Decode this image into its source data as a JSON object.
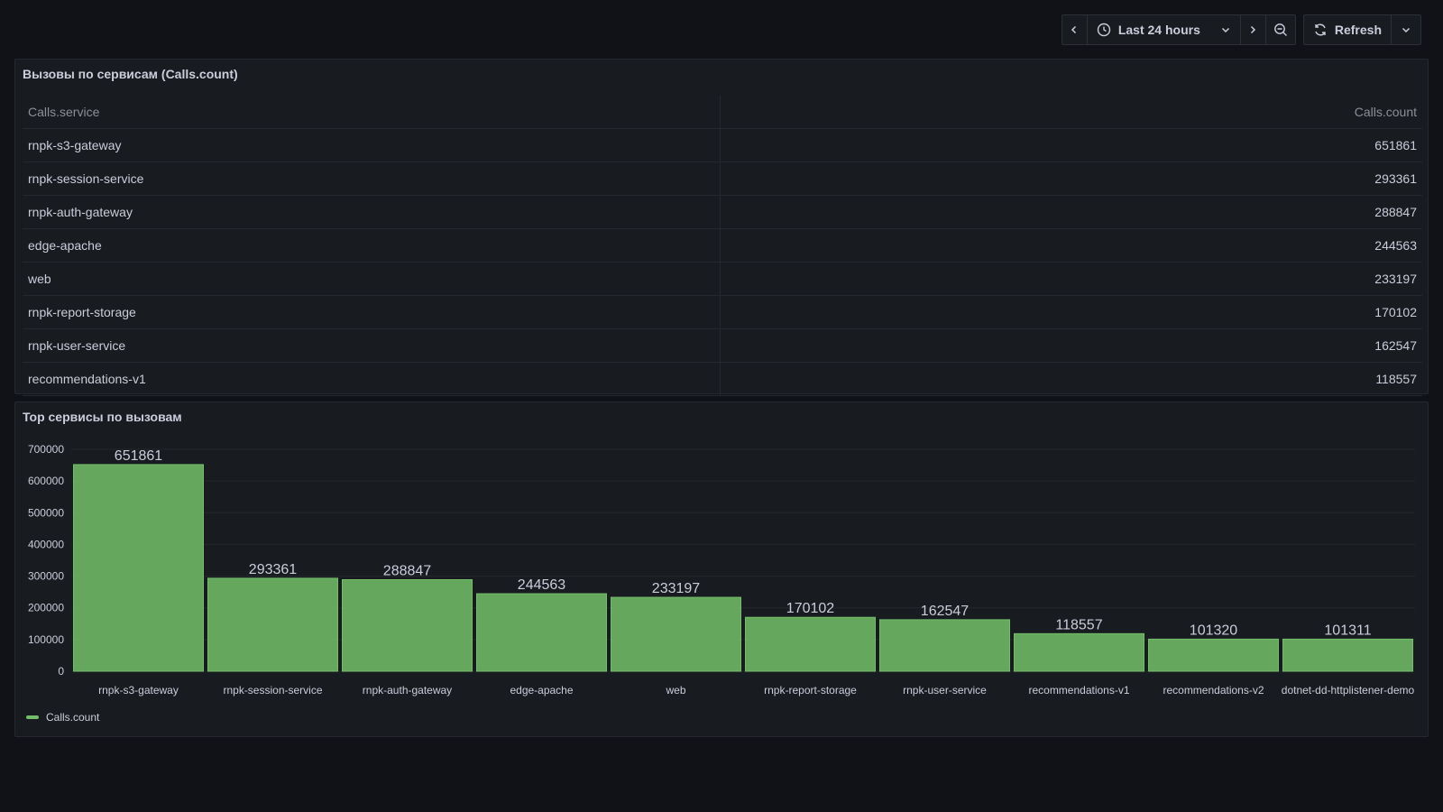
{
  "toolbar": {
    "time_range_label": "Last 24 hours",
    "refresh_label": "Refresh"
  },
  "table_panel": {
    "title": "Вызовы по сервисам (Calls.count)",
    "columns": [
      "Calls.service",
      "Calls.count"
    ],
    "rows": [
      {
        "service": "rnpk-s3-gateway",
        "count": "651861"
      },
      {
        "service": "rnpk-session-service",
        "count": "293361"
      },
      {
        "service": "rnpk-auth-gateway",
        "count": "288847"
      },
      {
        "service": "edge-apache",
        "count": "244563"
      },
      {
        "service": "web",
        "count": "233197"
      },
      {
        "service": "rnpk-report-storage",
        "count": "170102"
      },
      {
        "service": "rnpk-user-service",
        "count": "162547"
      },
      {
        "service": "recommendations-v1",
        "count": "118557"
      }
    ]
  },
  "chart_panel": {
    "title": "Top сервисы по вызовам",
    "legend_label": "Calls.count",
    "bar_color": "#73bf69"
  },
  "chart_data": {
    "type": "bar",
    "categories": [
      "rnpk-s3-gateway",
      "rnpk-session-service",
      "rnpk-auth-gateway",
      "edge-apache",
      "web",
      "rnpk-report-storage",
      "rnpk-user-service",
      "recommendations-v1",
      "recommendations-v2",
      "dotnet-dd-httplistener-demo"
    ],
    "series": [
      {
        "name": "Calls.count",
        "values": [
          651861,
          293361,
          288847,
          244563,
          233197,
          170102,
          162547,
          118557,
          101320,
          101311
        ]
      }
    ],
    "yticks": [
      "0",
      "100000",
      "200000",
      "300000",
      "400000",
      "500000",
      "600000",
      "700000"
    ],
    "ylim": [
      0,
      700000
    ],
    "grid": true,
    "legend": "bottom-left"
  }
}
